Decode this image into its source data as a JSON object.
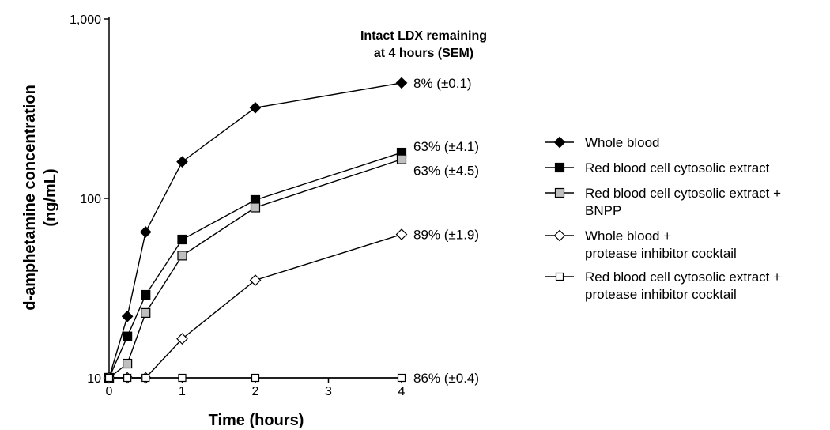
{
  "chart_data": {
    "type": "line",
    "title": "",
    "xlabel": "Time (hours)",
    "ylabel_lines": [
      "d-amphetamine concentration",
      "(ng/mL)"
    ],
    "y_scale": "log",
    "ylim": [
      10,
      1000
    ],
    "y_ticks": [
      10,
      100,
      1000
    ],
    "y_tick_labels": [
      "10",
      "100",
      "1,000"
    ],
    "xlim": [
      0,
      4
    ],
    "x_ticks": [
      0,
      1,
      2,
      3,
      4
    ],
    "x_tick_labels": [
      "0",
      "1",
      "2",
      "3",
      "4"
    ],
    "grid": false,
    "legend_position": "right",
    "annotation_title_lines": [
      "Intact LDX remaining",
      "at 4 hours (SEM)"
    ],
    "series": [
      {
        "name": "Whole blood",
        "name_lines": [
          "Whole blood"
        ],
        "marker": "diamond",
        "marker_fill": "#000000",
        "x": [
          0,
          0.25,
          0.5,
          1,
          2,
          4
        ],
        "y": [
          10,
          22,
          65,
          160,
          320,
          440
        ],
        "end_label": "8% (±0.1)"
      },
      {
        "name": "Red blood cell cytosolic extract",
        "name_lines": [
          "Red blood cell cytosolic extract"
        ],
        "marker": "square",
        "marker_fill": "#000000",
        "x": [
          0,
          0.25,
          0.5,
          1,
          2,
          4
        ],
        "y": [
          10,
          17,
          29,
          59,
          98,
          180
        ],
        "end_label": "63% (±4.1)"
      },
      {
        "name": "Red blood cell cytosolic extract + BNPP",
        "name_lines": [
          "Red blood cell cytosolic extract +",
          "BNPP"
        ],
        "marker": "square",
        "marker_fill": "#bfbfbf",
        "x": [
          0,
          0.25,
          0.5,
          1,
          2,
          4
        ],
        "y": [
          10,
          12,
          23,
          48,
          89,
          165
        ],
        "end_label": "63% (±4.5)"
      },
      {
        "name": "Whole blood + protease inhibitor cocktail",
        "name_lines": [
          "Whole blood +",
          "protease inhibitor cocktail"
        ],
        "marker": "diamond",
        "marker_fill": "#ffffff",
        "x": [
          0,
          0.25,
          0.5,
          1,
          2,
          4
        ],
        "y": [
          10,
          10,
          10,
          16.5,
          35,
          63
        ],
        "end_label": "89% (±1.9)"
      },
      {
        "name": "Red blood cell cytosolic extract + protease inhibitor cocktail",
        "name_lines": [
          "Red blood cell cytosolic extract +",
          "protease inhibitor cocktail"
        ],
        "marker": "square-small",
        "marker_fill": "#ffffff",
        "x": [
          0,
          0.25,
          0.5,
          1,
          2,
          4
        ],
        "y": [
          10,
          10,
          10,
          10,
          10,
          10
        ],
        "end_label": "86% (±0.4)"
      }
    ]
  }
}
